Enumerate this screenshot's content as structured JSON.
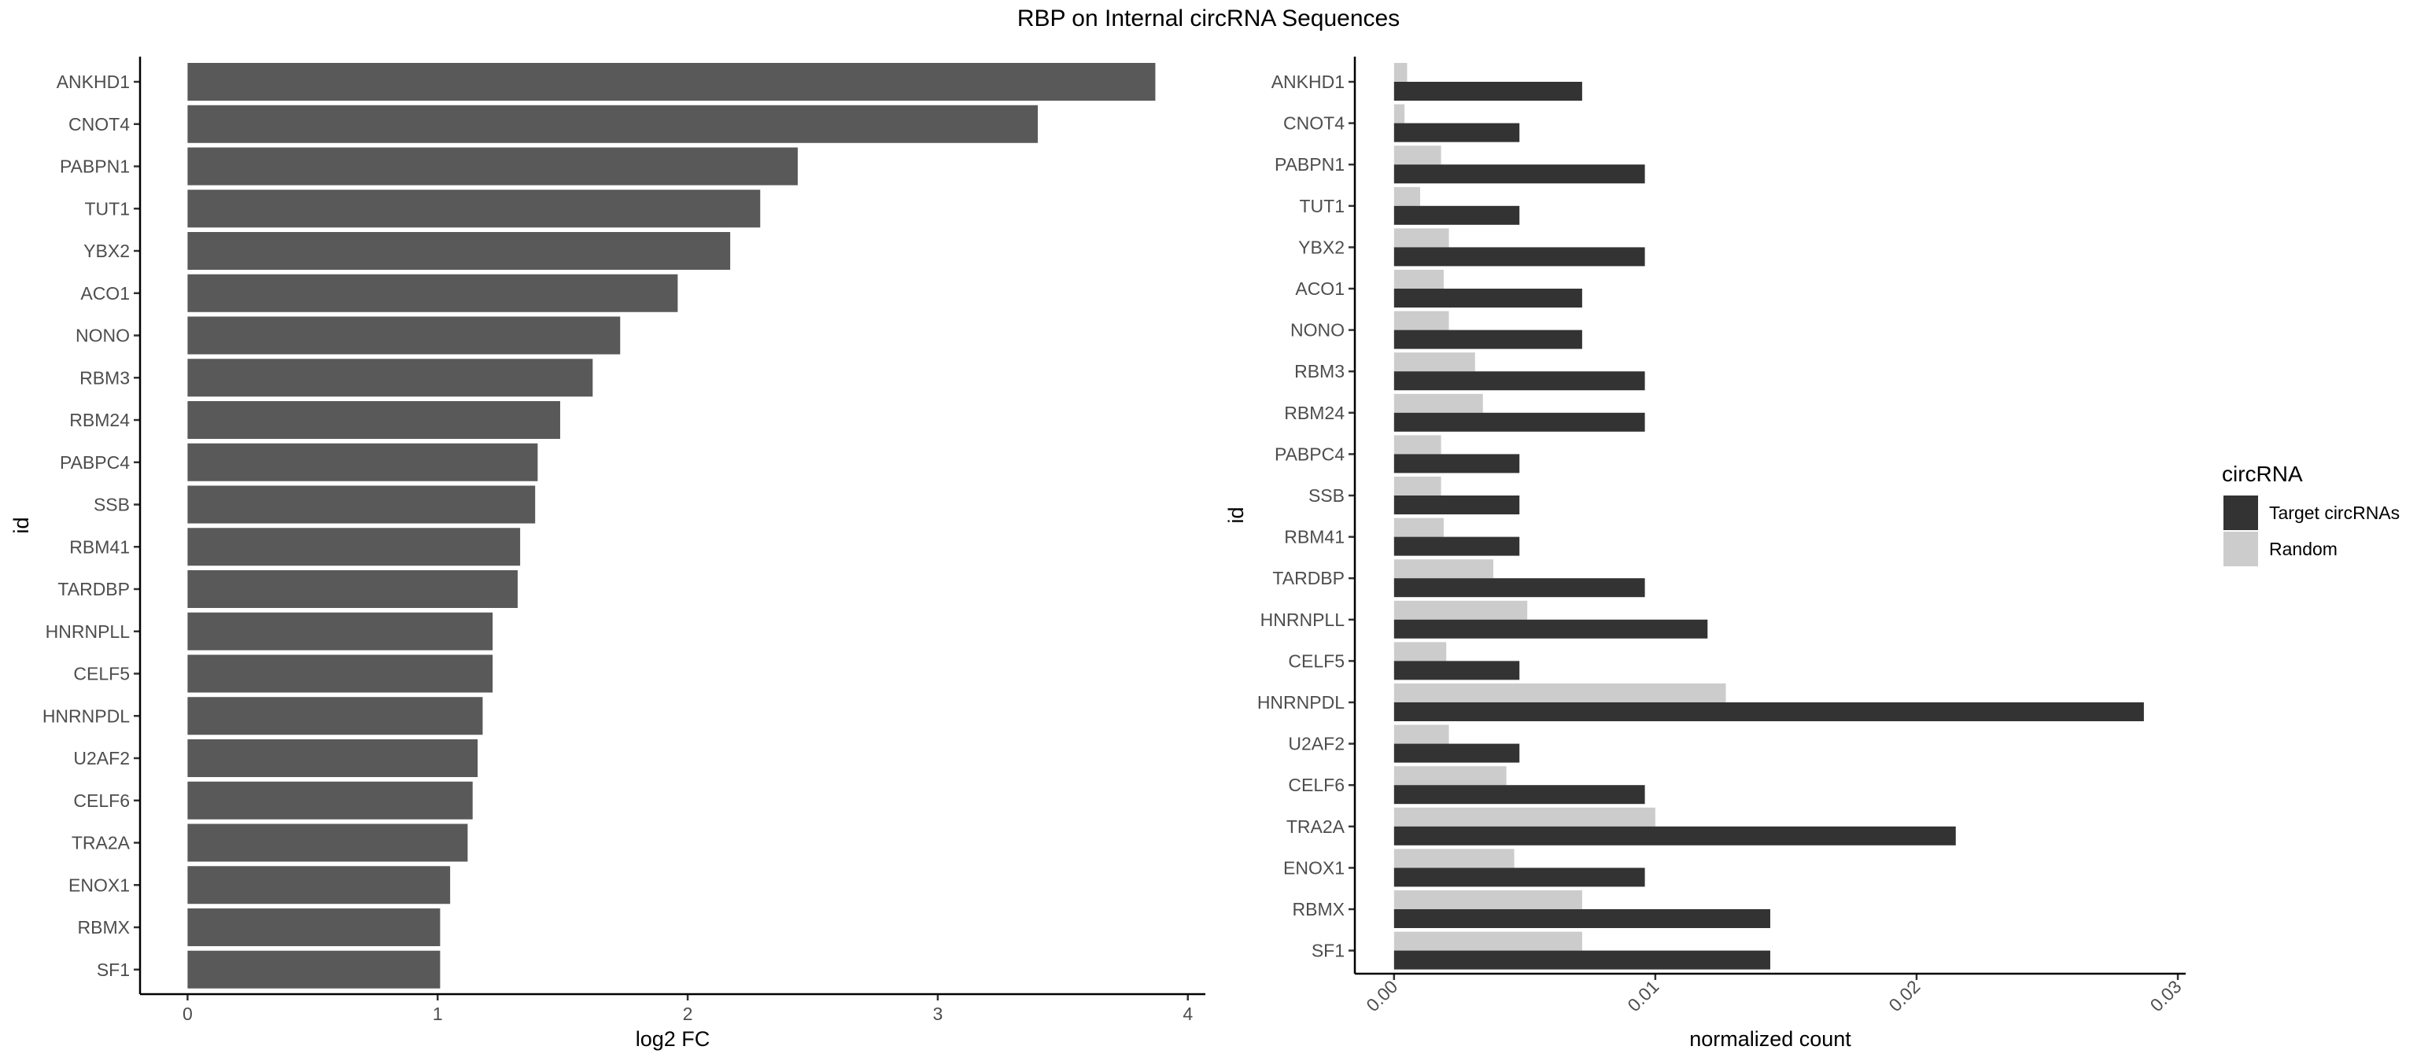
{
  "title": "RBP on Internal circRNA Sequences",
  "chart_data": [
    {
      "type": "bar",
      "orientation": "horizontal",
      "xlabel": "log2 FC",
      "ylabel": "id",
      "xlim": [
        -0.19,
        4.07
      ],
      "x_ticks": [
        0,
        1,
        2,
        3,
        4
      ],
      "grid": false,
      "bar_color": "#595959",
      "categories": [
        "ANKHD1",
        "CNOT4",
        "PABPN1",
        "TUT1",
        "YBX2",
        "ACO1",
        "NONO",
        "RBM3",
        "RBM24",
        "PABPC4",
        "SSB",
        "RBM41",
        "TARDBP",
        "HNRNPLL",
        "CELF5",
        "HNRNPDL",
        "U2AF2",
        "CELF6",
        "TRA2A",
        "ENOX1",
        "RBMX",
        "SF1"
      ],
      "values": [
        3.87,
        3.4,
        2.44,
        2.29,
        2.17,
        1.96,
        1.73,
        1.62,
        1.49,
        1.4,
        1.39,
        1.33,
        1.32,
        1.22,
        1.22,
        1.18,
        1.16,
        1.14,
        1.12,
        1.05,
        1.01,
        1.01
      ]
    },
    {
      "type": "bar",
      "orientation": "horizontal",
      "xlabel": "normalized count",
      "ylabel": "id",
      "xlim": [
        -0.0015,
        0.0303
      ],
      "x_ticks": [
        0.0,
        0.01,
        0.02,
        0.03
      ],
      "x_tick_labels": [
        "0.00",
        "0.01",
        "0.02",
        "0.03"
      ],
      "grid": false,
      "legend": {
        "title": "circRNA",
        "placement": "right"
      },
      "categories": [
        "ANKHD1",
        "CNOT4",
        "PABPN1",
        "TUT1",
        "YBX2",
        "ACO1",
        "NONO",
        "RBM3",
        "RBM24",
        "PABPC4",
        "SSB",
        "RBM41",
        "TARDBP",
        "HNRNPLL",
        "CELF5",
        "HNRNPDL",
        "U2AF2",
        "CELF6",
        "TRA2A",
        "ENOX1",
        "RBMX",
        "SF1"
      ],
      "series": [
        {
          "name": "Target circRNAs",
          "color": "#333333",
          "values": [
            0.0072,
            0.0048,
            0.0096,
            0.0048,
            0.0096,
            0.0072,
            0.0072,
            0.0096,
            0.0096,
            0.0048,
            0.0048,
            0.0048,
            0.0096,
            0.012,
            0.0048,
            0.0287,
            0.0048,
            0.0096,
            0.0215,
            0.0096,
            0.0144,
            0.0144
          ]
        },
        {
          "name": "Random",
          "color": "#cccccc",
          "values": [
            0.0005,
            0.0004,
            0.0018,
            0.001,
            0.0021,
            0.0019,
            0.0021,
            0.0031,
            0.0034,
            0.0018,
            0.0018,
            0.0019,
            0.0038,
            0.0051,
            0.002,
            0.0127,
            0.0021,
            0.0043,
            0.01,
            0.0046,
            0.0072,
            0.0072
          ]
        }
      ]
    }
  ]
}
